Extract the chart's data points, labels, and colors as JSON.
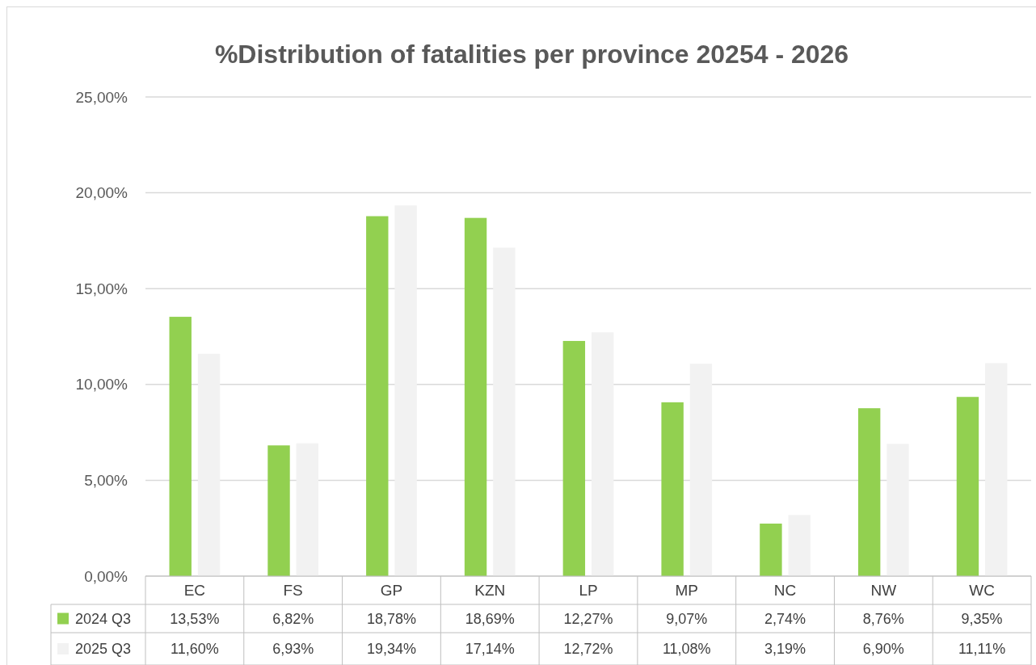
{
  "chart_data": {
    "type": "bar",
    "title": "%Distribution of fatalities per province 20254 - 2026",
    "categories": [
      "EC",
      "FS",
      "GP",
      "KZN",
      "LP",
      "MP",
      "NC",
      "NW",
      "WC"
    ],
    "series": [
      {
        "name": "2024 Q3",
        "color": "#92d050",
        "values": [
          13.53,
          6.82,
          18.78,
          18.69,
          12.27,
          9.07,
          2.74,
          8.76,
          9.35
        ],
        "value_labels": [
          "13,53%",
          "6,82%",
          "18,78%",
          "18,69%",
          "12,27%",
          "9,07%",
          "2,74%",
          "8,76%",
          "9,35%"
        ]
      },
      {
        "name": "2025 Q3",
        "color": "#f2f2f2",
        "values": [
          11.6,
          6.93,
          19.34,
          17.14,
          12.72,
          11.08,
          3.19,
          6.9,
          11.11
        ],
        "value_labels": [
          "11,60%",
          "6,93%",
          "19,34%",
          "17,14%",
          "12,72%",
          "11,08%",
          "3,19%",
          "6,90%",
          "11,11%"
        ]
      }
    ],
    "ylim": [
      0,
      25
    ],
    "yticks": [
      {
        "value": 0,
        "label": "0,00%"
      },
      {
        "value": 5,
        "label": "5,00%"
      },
      {
        "value": 10,
        "label": "10,00%"
      },
      {
        "value": 15,
        "label": "15,00%"
      },
      {
        "value": 20,
        "label": "20,00%"
      },
      {
        "value": 25,
        "label": "25,00%"
      }
    ],
    "grid": "y",
    "legend": "bottom"
  }
}
